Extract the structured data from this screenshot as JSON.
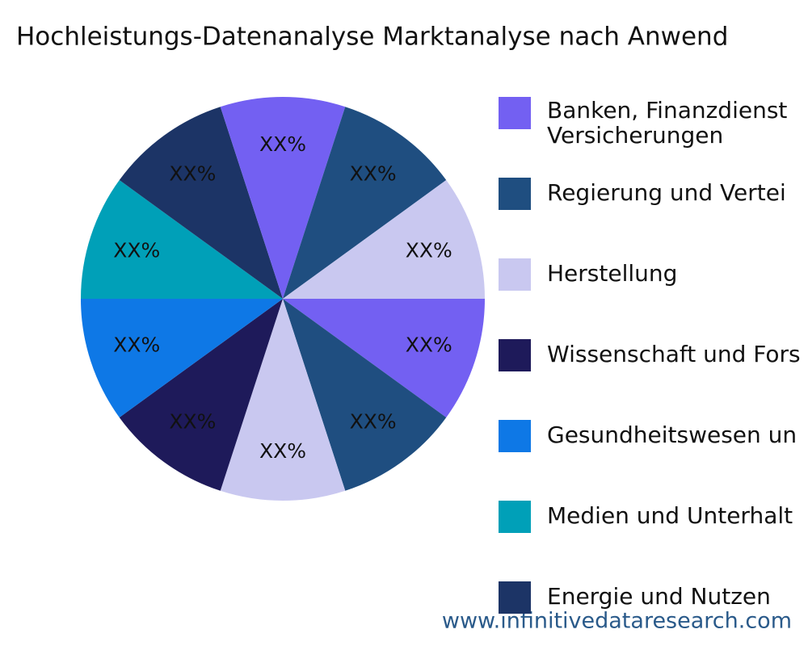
{
  "chart_data": {
    "type": "pie",
    "title": "Hochleistungs-Datenanalyse Marktanalyse nach Anwend",
    "categories": [
      "Banken, Finanzdienst\nVersicherungen",
      "Regierung und Vertei",
      "Herstellung",
      "Wissenschaft und Fors",
      "Gesundheitswesen un",
      "Medien und Unterhalt",
      "Energie und Nutzen",
      null,
      null,
      null
    ],
    "values": [
      10,
      10,
      10,
      10,
      10,
      10,
      10,
      10,
      10,
      10
    ],
    "value_labels": [
      "XX%",
      "XX%",
      "XX%",
      "XX%",
      "XX%",
      "XX%",
      "XX%",
      "XX%",
      "XX%",
      "XX%"
    ],
    "colors": [
      "#7360f2",
      "#1f4e80",
      "#c9c8f0",
      "#1e1a5a",
      "#0e78e6",
      "#00a0b8",
      "#1c3466",
      "#7360f2",
      "#1f4e80",
      "#c9c8f0"
    ],
    "watermark": "www.infinitivedataresearch.com"
  }
}
